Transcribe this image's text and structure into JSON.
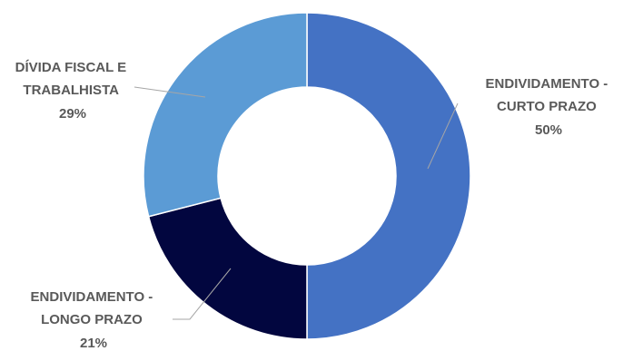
{
  "chart_data": {
    "type": "pie",
    "variant": "donut",
    "start_angle_deg": 0,
    "direction": "clockwise",
    "slices": [
      {
        "label_lines": [
          "ENDIVIDAMENTO -",
          "CURTO PRAZO"
        ],
        "value": 50,
        "value_label": "50%",
        "color": "#4472C4"
      },
      {
        "label_lines": [
          "ENDIVIDAMENTO -",
          "LONGO PRAZO"
        ],
        "value": 21,
        "value_label": "21%",
        "color": "#02063F"
      },
      {
        "label_lines": [
          "DÍVIDA FISCAL E",
          "TRABALHISTA"
        ],
        "value": 29,
        "value_label": "29%",
        "color": "#5B9BD5"
      }
    ],
    "colors": {
      "label_text": "#595959",
      "leader_line": "#A6A6A6",
      "slice_border": "#ffffff"
    }
  }
}
